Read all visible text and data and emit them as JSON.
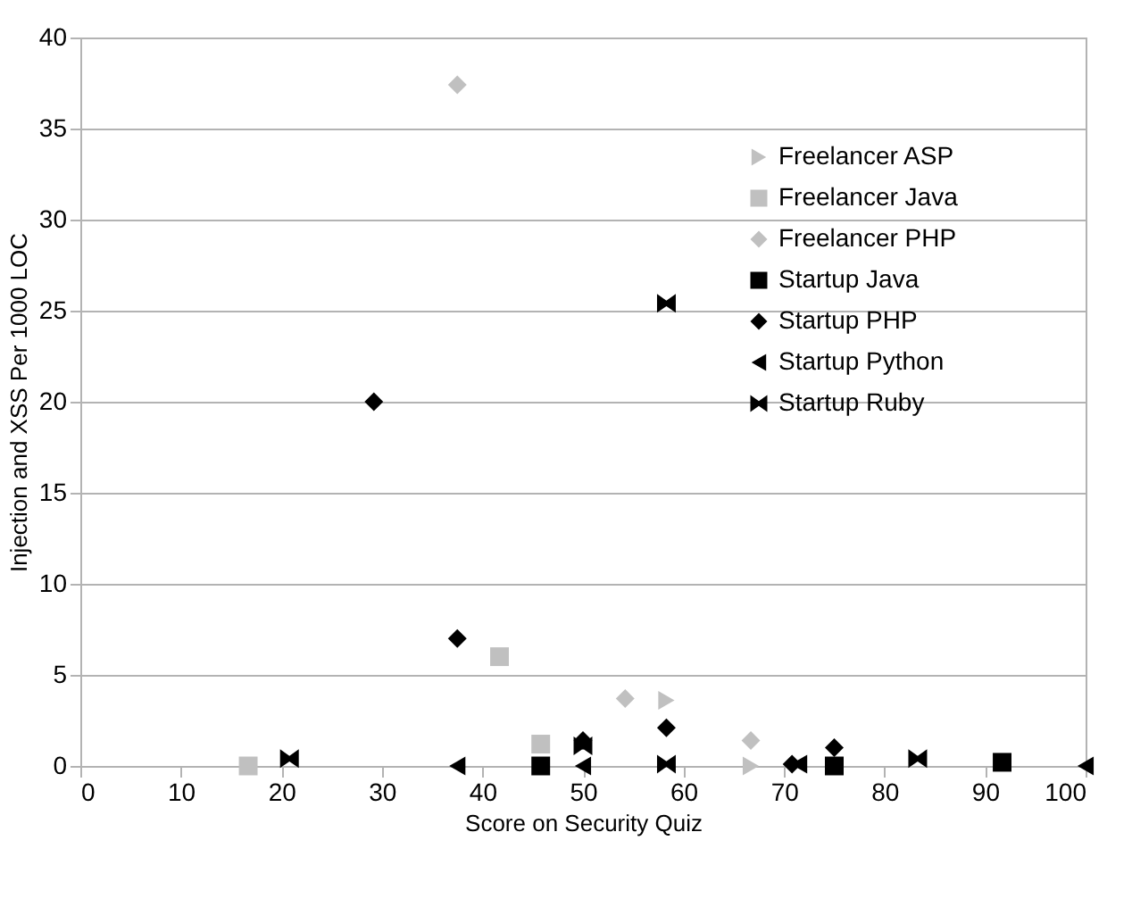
{
  "chart_data": {
    "type": "scatter",
    "xlabel": "Score on Security Quiz",
    "ylabel": "Injection and XSS Per 1000 LOC",
    "xlim": [
      0,
      100
    ],
    "xticks": [
      0,
      10,
      20,
      30,
      40,
      50,
      60,
      70,
      80,
      90,
      100
    ],
    "ylim": [
      0,
      40
    ],
    "yticks": [
      0,
      5,
      10,
      15,
      20,
      25,
      30,
      35,
      40
    ],
    "grid": "y",
    "legend": "top right",
    "series": [
      {
        "name": "Freelancer ASP",
        "color": "#c0c0c0",
        "marker": "triangle-right",
        "x": [
          58.3,
          66.7
        ],
        "values": [
          3.6,
          0
        ]
      },
      {
        "name": "Freelancer Java",
        "color": "#c0c0c0",
        "marker": "square",
        "x": [
          16.7,
          41.7,
          45.8
        ],
        "values": [
          0,
          6,
          1.2
        ]
      },
      {
        "name": "Freelancer PHP",
        "color": "#c0c0c0",
        "marker": "diamond",
        "x": [
          37.5,
          54.2,
          66.7
        ],
        "values": [
          37.4,
          3.7,
          1.4
        ]
      },
      {
        "name": "Startup Java",
        "color": "#000000",
        "marker": "square",
        "x": [
          45.8,
          75,
          91.7
        ],
        "values": [
          0,
          0,
          0.2
        ]
      },
      {
        "name": "Startup PHP",
        "color": "#000000",
        "marker": "diamond",
        "x": [
          29.2,
          37.5,
          50,
          58.3,
          70.8,
          75
        ],
        "values": [
          20,
          7,
          1.4,
          2.1,
          0.1,
          1
        ]
      },
      {
        "name": "Startup Python",
        "color": "#000000",
        "marker": "triangle-left",
        "x": [
          37.5,
          50,
          71.5,
          100
        ],
        "values": [
          0,
          0,
          0.1,
          0
        ]
      },
      {
        "name": "Startup Ruby",
        "color": "#000000",
        "x": [
          20.8,
          50,
          58.3,
          58.3,
          83.3
        ],
        "values": [
          0.4,
          1.1,
          0.1,
          25.4,
          0.4
        ]
      }
    ]
  }
}
